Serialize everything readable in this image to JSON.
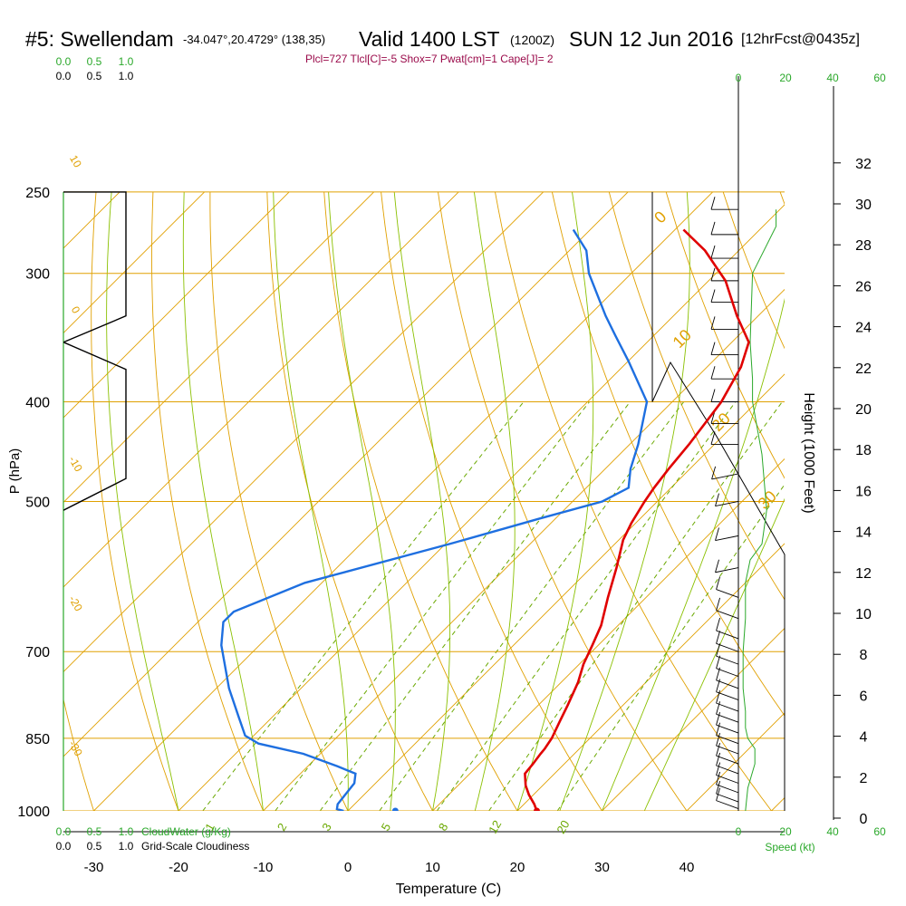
{
  "header": {
    "station": "#5: Swellendam",
    "coords": "-34.047°,20.4729° (138,35)",
    "valid": "Valid 1400 LST",
    "zulu": "(1200Z)",
    "date": "SUN 12 Jun 2016",
    "forecast": "[12hrFcst@0435z]",
    "params": "Plcl=727 Tlcl[C]=-5 Shox=7 Pwat[cm]=1 Cape[J]= 2"
  },
  "chart_data": {
    "type": "line",
    "chart_kind": "skew-T log-P sounding",
    "xlabel": "Temperature (C)",
    "ylabel": "P (hPa)",
    "right_label": "Height (1000 Feet)",
    "x_ticks": [
      "-30",
      "-20",
      "-10",
      "0",
      "10",
      "20",
      "30",
      "40"
    ],
    "p_ticks": [
      "250",
      "300",
      "400",
      "500",
      "700",
      "850",
      "1000"
    ],
    "height_ticks": [
      "0",
      "2",
      "4",
      "6",
      "8",
      "10",
      "12",
      "14",
      "16",
      "18",
      "20",
      "22",
      "24",
      "26",
      "28",
      "30",
      "32"
    ],
    "isotherm_labels": [
      "-10",
      "0",
      "10",
      "20",
      "30"
    ],
    "dry_adiabat_labels": [
      "10",
      "0",
      "-10",
      "-20",
      "-30"
    ],
    "mixing_ratio_labels": [
      "1",
      "2",
      "3",
      "5",
      "8",
      "12",
      "20"
    ],
    "cloud_scale_top": [
      "0.0",
      "0.5",
      "1.0"
    ],
    "cloud_scale_bottom": [
      "0.0",
      "0.5",
      "1.0"
    ],
    "cloud_water_label": "CloudWater (g/Kg)",
    "cloudiness_label": "Grid-Scale Cloudiness",
    "speed_ticks": [
      "0",
      "20",
      "40",
      "60"
    ],
    "speed_label": "Speed (kt)",
    "colors": {
      "temperature": "#e00000",
      "dewpoint": "#1e6fe0",
      "isobar": "#e0a000",
      "isotherm": "#e0a000",
      "mixing_ratio": "#6aa800",
      "moist_adiabat": "#8ac000",
      "speed": "#2aa82a",
      "params": "#9a0a4a"
    },
    "series": [
      {
        "name": "Temperature",
        "points": [
          [
            22.3,
            1000
          ],
          [
            21.2,
            985
          ],
          [
            19.5,
            965
          ],
          [
            18.0,
            945
          ],
          [
            16.5,
            920
          ],
          [
            16.3,
            900
          ],
          [
            16.0,
            880
          ],
          [
            15.9,
            870
          ],
          [
            15.5,
            850
          ],
          [
            14.5,
            820
          ],
          [
            13.5,
            790
          ],
          [
            12.0,
            750
          ],
          [
            10.5,
            720
          ],
          [
            9.3,
            690
          ],
          [
            8.0,
            660
          ],
          [
            5.5,
            620
          ],
          [
            3.0,
            580
          ],
          [
            0.5,
            545
          ],
          [
            -0.5,
            525
          ],
          [
            -1.5,
            500
          ],
          [
            -2.0,
            485
          ],
          [
            -2.5,
            465
          ],
          [
            -3.0,
            440
          ],
          [
            -4.2,
            400
          ],
          [
            -6.0,
            370
          ],
          [
            -8.0,
            350
          ],
          [
            -12.5,
            330
          ],
          [
            -18.0,
            305
          ],
          [
            -24.0,
            285
          ],
          [
            -29.0,
            272
          ]
        ]
      },
      {
        "name": "Dewpoint",
        "points": [
          [
            -0.5,
            1000
          ],
          [
            -1.5,
            996
          ],
          [
            -2.0,
            985
          ],
          [
            -2.5,
            940
          ],
          [
            -3.5,
            920
          ],
          [
            -6.5,
            905
          ],
          [
            -12.0,
            880
          ],
          [
            -18.5,
            860
          ],
          [
            -21.0,
            845
          ],
          [
            -24.0,
            810
          ],
          [
            -28.5,
            760
          ],
          [
            -34.5,
            690
          ],
          [
            -37.0,
            655
          ],
          [
            -37.0,
            640
          ],
          [
            -32.0,
            600
          ],
          [
            -19.5,
            550
          ],
          [
            -12.0,
            520
          ],
          [
            -6.5,
            500
          ],
          [
            -5.0,
            485
          ],
          [
            -7.0,
            465
          ],
          [
            -9.0,
            440
          ],
          [
            -13.0,
            400
          ],
          [
            -20.0,
            365
          ],
          [
            -24.5,
            345
          ],
          [
            -28.0,
            330
          ],
          [
            -35.0,
            300
          ],
          [
            -38.0,
            285
          ],
          [
            -42.0,
            272
          ]
        ]
      }
    ],
    "surface_dewpoint_marker": [
      5.6,
      1000
    ],
    "cloudiness_profile": [
      [
        0,
        250
      ],
      [
        1,
        250
      ],
      [
        1,
        330
      ],
      [
        0,
        350
      ],
      [
        1,
        372
      ],
      [
        1,
        475
      ],
      [
        0,
        510
      ]
    ],
    "wind_speed_profile": [
      [
        3,
        1000
      ],
      [
        4,
        950
      ],
      [
        7,
        900
      ],
      [
        7,
        870
      ],
      [
        4,
        850
      ],
      [
        3,
        830
      ],
      [
        3,
        800
      ],
      [
        2,
        760
      ],
      [
        2,
        700
      ],
      [
        3,
        650
      ],
      [
        3,
        600
      ],
      [
        5,
        570
      ],
      [
        10,
        550
      ],
      [
        12,
        510
      ],
      [
        10,
        450
      ],
      [
        6,
        400
      ],
      [
        6,
        380
      ],
      [
        5,
        350
      ],
      [
        6,
        300
      ],
      [
        16,
        270
      ],
      [
        16,
        260
      ]
    ]
  }
}
